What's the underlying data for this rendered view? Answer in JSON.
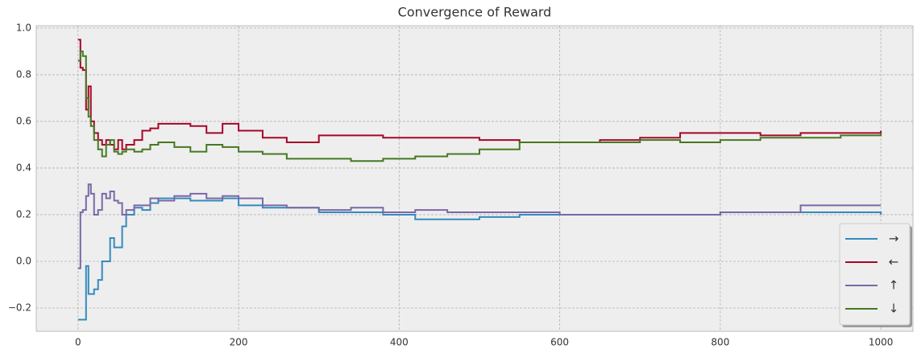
{
  "chart_data": {
    "type": "line",
    "title": "Convergence of Reward",
    "x": [
      0,
      3,
      6,
      10,
      13,
      16,
      20,
      25,
      30,
      35,
      40,
      45,
      50,
      55,
      60,
      70,
      80,
      90,
      100,
      120,
      140,
      160,
      180,
      200,
      230,
      260,
      300,
      340,
      380,
      420,
      460,
      500,
      550,
      600,
      650,
      700,
      750,
      800,
      850,
      900,
      950,
      1000
    ],
    "series": [
      {
        "name": "→",
        "color": "#348abd",
        "values": [
          -0.25,
          -0.25,
          -0.25,
          -0.02,
          -0.14,
          -0.14,
          -0.12,
          -0.08,
          0.0,
          0.0,
          0.1,
          0.06,
          0.06,
          0.15,
          0.2,
          0.23,
          0.22,
          0.25,
          0.27,
          0.27,
          0.26,
          0.26,
          0.27,
          0.24,
          0.23,
          0.23,
          0.21,
          0.21,
          0.2,
          0.18,
          0.18,
          0.19,
          0.2,
          0.2,
          0.2,
          0.2,
          0.2,
          0.21,
          0.21,
          0.21,
          0.21,
          0.2
        ]
      },
      {
        "name": "←",
        "color": "#a60628",
        "values": [
          0.95,
          0.83,
          0.82,
          0.65,
          0.75,
          0.6,
          0.55,
          0.52,
          0.5,
          0.52,
          0.5,
          0.48,
          0.52,
          0.48,
          0.5,
          0.52,
          0.56,
          0.57,
          0.59,
          0.59,
          0.58,
          0.55,
          0.59,
          0.56,
          0.53,
          0.51,
          0.54,
          0.54,
          0.53,
          0.53,
          0.53,
          0.52,
          0.51,
          0.51,
          0.52,
          0.53,
          0.55,
          0.55,
          0.54,
          0.55,
          0.55,
          0.56
        ]
      },
      {
        "name": "↑",
        "color": "#7a68a6",
        "values": [
          -0.03,
          0.21,
          0.22,
          0.28,
          0.33,
          0.29,
          0.2,
          0.22,
          0.29,
          0.27,
          0.3,
          0.26,
          0.25,
          0.2,
          0.22,
          0.24,
          0.24,
          0.27,
          0.26,
          0.28,
          0.29,
          0.27,
          0.28,
          0.27,
          0.24,
          0.23,
          0.22,
          0.23,
          0.21,
          0.22,
          0.21,
          0.21,
          0.21,
          0.2,
          0.2,
          0.2,
          0.2,
          0.21,
          0.21,
          0.24,
          0.24,
          0.24
        ]
      },
      {
        "name": "↓",
        "color": "#467821",
        "values": [
          0.86,
          0.9,
          0.88,
          0.7,
          0.62,
          0.58,
          0.52,
          0.48,
          0.45,
          0.5,
          0.52,
          0.47,
          0.46,
          0.47,
          0.48,
          0.47,
          0.48,
          0.5,
          0.51,
          0.49,
          0.47,
          0.5,
          0.49,
          0.47,
          0.46,
          0.44,
          0.44,
          0.43,
          0.44,
          0.45,
          0.46,
          0.48,
          0.51,
          0.51,
          0.51,
          0.52,
          0.51,
          0.52,
          0.53,
          0.53,
          0.54,
          0.55
        ]
      }
    ],
    "xlim": [
      -52,
      1040
    ],
    "xticks": [
      0,
      200,
      400,
      600,
      800,
      1000
    ],
    "ylim": [
      -0.3,
      1.01
    ],
    "yticks": [
      {
        "value": -0.2,
        "label": "−0.2"
      },
      {
        "value": 0,
        "label": "0.0"
      },
      0.2,
      0.4,
      0.6,
      0.8,
      {
        "value": 1,
        "label": "1.0"
      }
    ],
    "grid": true,
    "legend": "lower right"
  }
}
